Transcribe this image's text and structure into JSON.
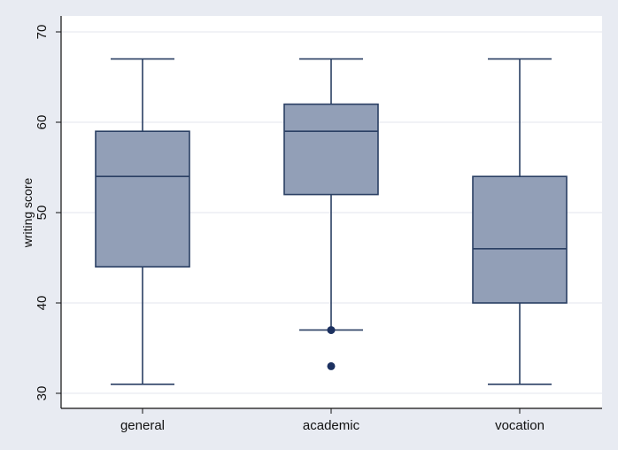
{
  "chart_data": {
    "type": "box",
    "categories": [
      "general",
      "academic",
      "vocation"
    ],
    "boxes": [
      {
        "category": "general",
        "whisker_low": 31,
        "q1": 44,
        "median": 54,
        "q3": 59,
        "whisker_high": 67,
        "outliers": []
      },
      {
        "category": "academic",
        "whisker_low": 37,
        "q1": 52,
        "median": 59,
        "q3": 62,
        "whisker_high": 67,
        "outliers": [
          37,
          33
        ]
      },
      {
        "category": "vocation",
        "whisker_low": 31,
        "q1": 40,
        "median": 46,
        "q3": 54,
        "whisker_high": 67,
        "outliers": []
      }
    ],
    "title": "",
    "xlabel": "",
    "ylabel": "writing score",
    "ylim": [
      30,
      70
    ],
    "yticks": [
      30,
      40,
      50,
      60,
      70
    ],
    "grid": true,
    "colors": {
      "page_background": "#e8ebf2",
      "plot_background": "#ffffff",
      "box_fill": "#929fb7",
      "box_stroke": "#2a3f63",
      "outlier": "#1c3160",
      "grid": "#e3e6ec",
      "axis": "#111111"
    }
  }
}
